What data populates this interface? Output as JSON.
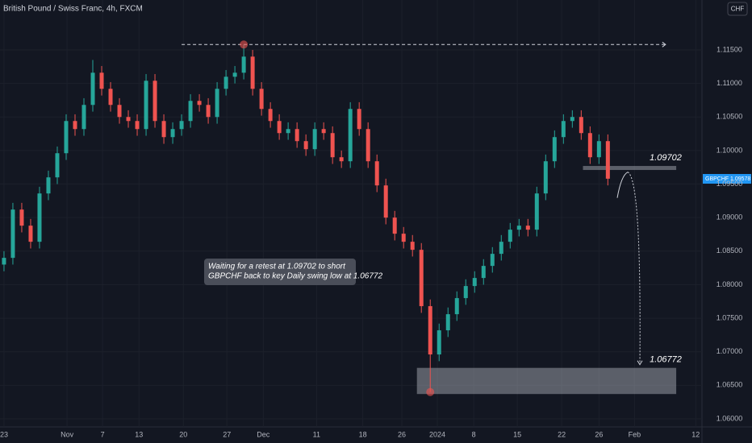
{
  "chart_data": {
    "type": "candlestick",
    "title": "British Pound / Swiss Franc, 4h, FXCM",
    "currency": "CHF",
    "up_color": "#26a69a",
    "down_color": "#ef5350",
    "grid": true,
    "x": [
      0,
      1,
      2,
      3,
      4,
      5,
      6,
      7,
      8,
      9,
      10,
      11,
      12,
      13,
      14,
      15,
      16,
      17,
      18,
      19,
      20,
      21,
      22,
      23,
      24,
      25,
      26,
      27,
      28,
      29,
      30,
      31,
      32,
      33,
      34,
      35,
      36,
      37,
      38,
      39,
      40,
      41,
      42,
      43,
      44,
      45,
      46,
      47,
      48,
      49,
      50,
      51,
      52,
      53,
      54,
      55,
      56,
      57,
      58,
      59,
      60,
      61,
      62,
      63,
      64,
      65,
      66,
      67,
      68
    ],
    "open": [
      1.083,
      1.084,
      1.0912,
      1.0888,
      1.0864,
      1.0936,
      1.096,
      1.0996,
      1.1044,
      1.1032,
      1.1068,
      1.1116,
      1.1092,
      1.1068,
      1.105,
      1.1044,
      1.1032,
      1.1104,
      1.1044,
      1.102,
      1.1032,
      1.1044,
      1.1074,
      1.1068,
      1.105,
      1.1092,
      1.111,
      1.1116,
      1.114,
      1.1092,
      1.1062,
      1.1044,
      1.1026,
      1.1032,
      1.1014,
      1.1002,
      1.1032,
      1.1026,
      1.099,
      1.0984,
      1.1062,
      1.1032,
      1.0984,
      1.0948,
      1.09,
      1.0876,
      1.0864,
      1.0852,
      1.0768,
      1.0696,
      1.0732,
      1.0756,
      1.078,
      1.0798,
      1.081,
      1.0828,
      1.0846,
      1.0864,
      1.0882,
      1.0888,
      1.0882,
      1.0936,
      1.0984,
      1.102,
      1.1044,
      1.105,
      1.1026,
      1.099,
      1.1014
    ],
    "high": [
      1.085,
      1.0922,
      1.0922,
      1.0898,
      1.0946,
      1.097,
      1.1006,
      1.1054,
      1.1054,
      1.1078,
      1.1135,
      1.1126,
      1.1102,
      1.1078,
      1.106,
      1.1054,
      1.1114,
      1.1114,
      1.1054,
      1.1042,
      1.1054,
      1.1084,
      1.1084,
      1.1078,
      1.1102,
      1.112,
      1.1126,
      1.1158,
      1.115,
      1.1102,
      1.1072,
      1.1054,
      1.1042,
      1.1042,
      1.1024,
      1.1042,
      1.1042,
      1.1036,
      1.1,
      1.1072,
      1.1072,
      1.1042,
      1.0994,
      1.0958,
      1.091,
      1.0886,
      1.0874,
      1.0862,
      1.0778,
      1.0742,
      1.0766,
      1.079,
      1.0808,
      1.082,
      1.0838,
      1.0856,
      1.0874,
      1.0892,
      1.0898,
      1.0898,
      1.0946,
      1.0994,
      1.103,
      1.1054,
      1.106,
      1.106,
      1.1036,
      1.1024,
      1.1024
    ],
    "low": [
      1.082,
      1.083,
      1.0878,
      1.0854,
      1.0854,
      1.0926,
      1.095,
      1.0986,
      1.1022,
      1.1022,
      1.1058,
      1.1082,
      1.1058,
      1.104,
      1.1034,
      1.1022,
      1.1022,
      1.1034,
      1.101,
      1.101,
      1.1022,
      1.1034,
      1.1058,
      1.104,
      1.104,
      1.1082,
      1.11,
      1.1106,
      1.1082,
      1.1052,
      1.1034,
      1.1016,
      1.1016,
      1.1004,
      1.0992,
      1.0992,
      1.1016,
      1.098,
      1.0974,
      1.0974,
      1.1022,
      1.0974,
      1.0938,
      1.089,
      1.0866,
      1.0854,
      1.0842,
      1.0758,
      1.064,
      1.0686,
      1.0722,
      1.0746,
      1.077,
      1.0788,
      1.08,
      1.0818,
      1.0836,
      1.0854,
      1.0872,
      1.0872,
      1.0872,
      1.0926,
      1.0974,
      1.101,
      1.1034,
      1.1016,
      1.098,
      1.098,
      1.0948
    ],
    "close": [
      1.084,
      1.0912,
      1.0888,
      1.0864,
      1.0936,
      1.096,
      1.0996,
      1.1044,
      1.1032,
      1.1068,
      1.1116,
      1.1092,
      1.1068,
      1.105,
      1.1044,
      1.1032,
      1.1104,
      1.1044,
      1.102,
      1.1032,
      1.1044,
      1.1074,
      1.1068,
      1.105,
      1.1092,
      1.111,
      1.1116,
      1.114,
      1.1092,
      1.1062,
      1.1044,
      1.1026,
      1.1032,
      1.1014,
      1.1002,
      1.1032,
      1.1026,
      1.099,
      1.0984,
      1.1062,
      1.1032,
      1.0984,
      1.0948,
      1.09,
      1.0876,
      1.0864,
      1.0852,
      1.0768,
      1.0696,
      1.0732,
      1.0756,
      1.078,
      1.0798,
      1.081,
      1.0828,
      1.0846,
      1.0864,
      1.0882,
      1.0888,
      1.0882,
      1.0936,
      1.0984,
      1.102,
      1.1044,
      1.105,
      1.1026,
      1.099,
      1.1014,
      1.0958
    ],
    "xlim": [
      -0.45,
      78.6
    ],
    "ylim": [
      1.0588,
      1.12244
    ],
    "xticks": [
      {
        "value": 0,
        "label": "23"
      },
      {
        "value": 7.1,
        "label": "Nov"
      },
      {
        "value": 11.1,
        "label": "7"
      },
      {
        "value": 15.2,
        "label": "13"
      },
      {
        "value": 20.2,
        "label": "20"
      },
      {
        "value": 25.1,
        "label": "27"
      },
      {
        "value": 29.2,
        "label": "Dec"
      },
      {
        "value": 35.2,
        "label": "11"
      },
      {
        "value": 40.4,
        "label": "18"
      },
      {
        "value": 44.8,
        "label": "26"
      },
      {
        "value": 48.8,
        "label": "2024"
      },
      {
        "value": 52.9,
        "label": "8"
      },
      {
        "value": 57.8,
        "label": "15"
      },
      {
        "value": 62.8,
        "label": "22"
      },
      {
        "value": 67,
        "label": "26"
      },
      {
        "value": 71,
        "label": "Feb"
      },
      {
        "value": 77.9,
        "label": "12"
      }
    ],
    "yticks": [
      {
        "value": 1.06,
        "label": "1.06000"
      },
      {
        "value": 1.065,
        "label": "1.06500"
      },
      {
        "value": 1.07,
        "label": "1.07000"
      },
      {
        "value": 1.075,
        "label": "1.07500"
      },
      {
        "value": 1.08,
        "label": "1.08000"
      },
      {
        "value": 1.085,
        "label": "1.08500"
      },
      {
        "value": 1.09,
        "label": "1.09000"
      },
      {
        "value": 1.095,
        "label": "1.09500"
      },
      {
        "value": 1.1,
        "label": "1.10000"
      },
      {
        "value": 1.105,
        "label": "1.10500"
      },
      {
        "value": 1.11,
        "label": "1.11000"
      },
      {
        "value": 1.115,
        "label": "1.11500"
      }
    ],
    "last_price": {
      "name": "GBPCHF",
      "value": 1.09578
    },
    "levels": [
      {
        "value": 1.09702,
        "zone": [
          1.0971,
          1.0977
        ],
        "xrange": [
          65.2,
          75.7
        ]
      },
      {
        "value": 1.06772,
        "zone": [
          1.0637,
          1.0676
        ],
        "xrange": [
          46.5,
          75.7
        ]
      }
    ],
    "dashed_line": {
      "value": 1.1158,
      "xrange": [
        20,
        74.5
      ]
    },
    "annotation": [
      "Waiting for a retest at 1.09702 to short",
      "GBPCHF back to key Daily swing low at 1.06772"
    ]
  }
}
